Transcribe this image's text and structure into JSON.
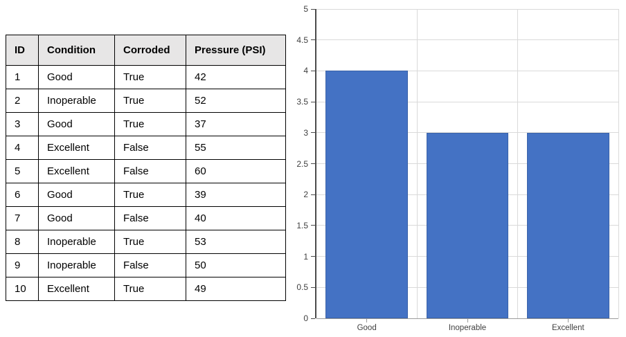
{
  "table": {
    "headers": [
      "ID",
      "Condition",
      "Corroded",
      "Pressure (PSI)"
    ],
    "rows": [
      [
        "1",
        "Good",
        "True",
        "42"
      ],
      [
        "2",
        "Inoperable",
        "True",
        "52"
      ],
      [
        "3",
        "Good",
        "True",
        "37"
      ],
      [
        "4",
        "Excellent",
        "False",
        "55"
      ],
      [
        "5",
        "Excellent",
        "False",
        "60"
      ],
      [
        "6",
        "Good",
        "True",
        "39"
      ],
      [
        "7",
        "Good",
        "False",
        "40"
      ],
      [
        "8",
        "Inoperable",
        "True",
        "53"
      ],
      [
        "9",
        "Inoperable",
        "False",
        "50"
      ],
      [
        "10",
        "Excellent",
        "True",
        "49"
      ]
    ],
    "header_bg": "#e7e6e6",
    "border_color": "#000000"
  },
  "chart_data": {
    "type": "bar",
    "categories": [
      "Good",
      "Inoperable",
      "Excellent"
    ],
    "values": [
      4,
      3,
      3
    ],
    "title": "",
    "xlabel": "",
    "ylabel": "",
    "ylim": [
      0,
      5
    ],
    "ytick_step": 0.5,
    "grid": true,
    "legend": false,
    "bar_color": "#4472c4",
    "bar_border_color": "#3a62a8",
    "gridline_color": "#d9d9d9",
    "y_axis_color": "#4a4a4a",
    "x_axis_color": "#9b9b9b",
    "tick_label_color": "#3f3f3f"
  }
}
